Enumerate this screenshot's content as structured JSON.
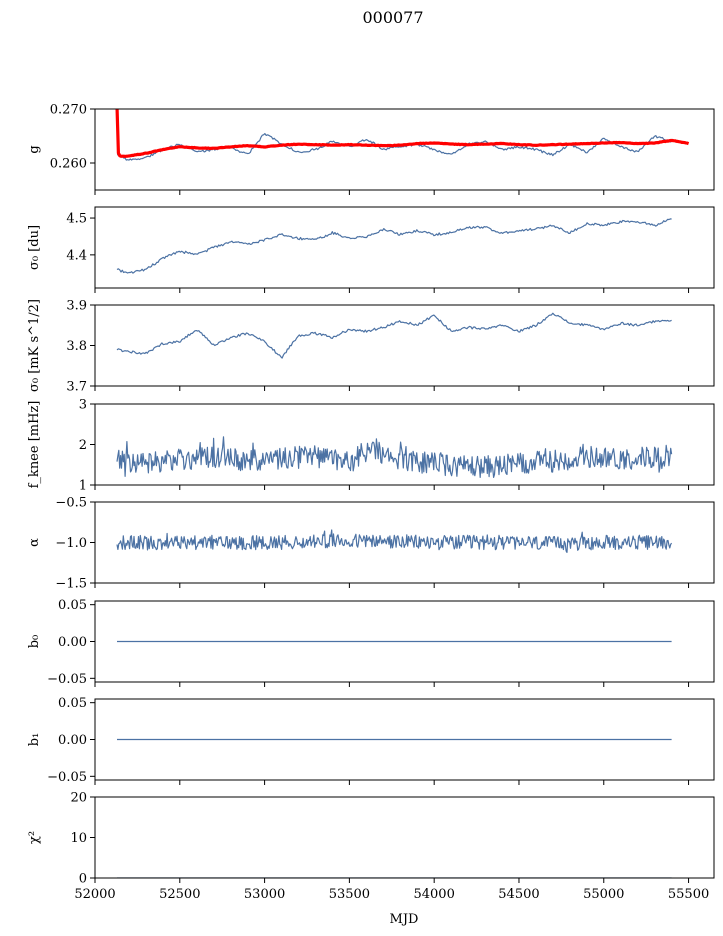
{
  "figure_title": "000077",
  "xlabel": "MJD",
  "xlim": [
    52000,
    55650
  ],
  "xticks": [
    52000,
    52500,
    53000,
    53500,
    54000,
    54500,
    55000,
    55500
  ],
  "colors": {
    "series": "#4c72a4",
    "red": "#ff0000",
    "axis": "#000000"
  },
  "chart_data": [
    {
      "type": "line",
      "ylabel": "g",
      "ylim": [
        0.255,
        0.27
      ],
      "yticks": [
        0.26,
        0.27
      ],
      "ytick_labels": [
        "0.260",
        "0.270"
      ],
      "x_range": [
        52130,
        55400
      ],
      "series": [
        {
          "color": "#4c72a4",
          "x": [
            52130,
            52200,
            52300,
            52400,
            52500,
            52600,
            52700,
            52800,
            52900,
            53000,
            53100,
            53200,
            53300,
            53400,
            53500,
            53600,
            53700,
            53800,
            53900,
            54000,
            54100,
            54200,
            54300,
            54400,
            54500,
            54600,
            54700,
            54800,
            54900,
            55000,
            55100,
            55200,
            55300,
            55400
          ],
          "y": [
            0.2615,
            0.2605,
            0.261,
            0.2625,
            0.2635,
            0.262,
            0.2625,
            0.263,
            0.2615,
            0.2655,
            0.2635,
            0.262,
            0.2625,
            0.264,
            0.263,
            0.2645,
            0.2625,
            0.263,
            0.2635,
            0.2625,
            0.2615,
            0.2635,
            0.264,
            0.2625,
            0.263,
            0.2625,
            0.2615,
            0.2635,
            0.262,
            0.2645,
            0.263,
            0.262,
            0.265,
            0.264
          ]
        },
        {
          "color": "#ff0000",
          "x": [
            52130,
            52135,
            52140,
            52150,
            52200,
            52300,
            52400,
            52500,
            52600,
            52700,
            52800,
            52900,
            53000,
            53100,
            53200,
            53300,
            53400,
            53500,
            53600,
            53700,
            53800,
            53900,
            54000,
            54100,
            54200,
            54300,
            54400,
            54500,
            54600,
            54700,
            54800,
            54900,
            55000,
            55100,
            55200,
            55300,
            55400,
            55500
          ],
          "y": [
            0.2705,
            0.2625,
            0.2615,
            0.2612,
            0.2613,
            0.2618,
            0.2625,
            0.263,
            0.2628,
            0.2627,
            0.263,
            0.2632,
            0.263,
            0.2633,
            0.2635,
            0.2634,
            0.2633,
            0.2634,
            0.2633,
            0.2632,
            0.2633,
            0.2636,
            0.2637,
            0.2635,
            0.2634,
            0.2635,
            0.2636,
            0.2634,
            0.2633,
            0.2634,
            0.2635,
            0.2636,
            0.2637,
            0.2638,
            0.2636,
            0.2637,
            0.2642,
            0.2636
          ]
        }
      ]
    },
    {
      "type": "line",
      "ylabel": "σ₀ [du]",
      "ylim": [
        4.31,
        4.53
      ],
      "yticks": [
        4.4,
        4.5
      ],
      "ytick_labels": [
        "4.4",
        "4.5"
      ],
      "series": [
        {
          "color": "#4c72a4",
          "x": [
            52130,
            52200,
            52300,
            52400,
            52500,
            52600,
            52700,
            52800,
            52900,
            53000,
            53100,
            53200,
            53300,
            53400,
            53500,
            53600,
            53700,
            53800,
            53900,
            54000,
            54100,
            54200,
            54300,
            54400,
            54500,
            54600,
            54700,
            54800,
            54900,
            55000,
            55100,
            55200,
            55300,
            55400
          ],
          "y": [
            4.36,
            4.35,
            4.36,
            4.39,
            4.41,
            4.4,
            4.42,
            4.435,
            4.43,
            4.44,
            4.455,
            4.445,
            4.44,
            4.46,
            4.445,
            4.45,
            4.47,
            4.455,
            4.465,
            4.455,
            4.46,
            4.475,
            4.475,
            4.46,
            4.465,
            4.47,
            4.48,
            4.46,
            4.485,
            4.48,
            4.49,
            4.49,
            4.48,
            4.5
          ]
        }
      ]
    },
    {
      "type": "line",
      "ylabel": "σ₀ [mK s^1/2]",
      "ylim": [
        3.7,
        3.9
      ],
      "yticks": [
        3.7,
        3.8,
        3.9
      ],
      "ytick_labels": [
        "3.7",
        "3.8",
        "3.9"
      ],
      "series": [
        {
          "color": "#4c72a4",
          "x": [
            52130,
            52200,
            52300,
            52400,
            52500,
            52600,
            52700,
            52800,
            52900,
            53000,
            53100,
            53200,
            53300,
            53400,
            53500,
            53600,
            53700,
            53800,
            53900,
            54000,
            54100,
            54200,
            54300,
            54400,
            54500,
            54600,
            54700,
            54800,
            54900,
            55000,
            55100,
            55200,
            55300,
            55400
          ],
          "y": [
            3.79,
            3.785,
            3.78,
            3.805,
            3.81,
            3.84,
            3.8,
            3.82,
            3.83,
            3.81,
            3.77,
            3.825,
            3.83,
            3.82,
            3.84,
            3.835,
            3.845,
            3.86,
            3.85,
            3.875,
            3.835,
            3.845,
            3.84,
            3.85,
            3.835,
            3.85,
            3.88,
            3.855,
            3.85,
            3.84,
            3.855,
            3.85,
            3.86,
            3.86
          ]
        }
      ]
    },
    {
      "type": "line",
      "ylabel": "f_knee [mHz]",
      "ylim": [
        1,
        3
      ],
      "yticks": [
        1,
        2,
        3
      ],
      "ytick_labels": [
        "1",
        "2",
        "3"
      ],
      "series": [
        {
          "color": "#4c72a4",
          "noisy": true,
          "amplitude": 0.28,
          "x": [
            52130,
            52300,
            52500,
            52700,
            52900,
            53100,
            53300,
            53500,
            53600,
            53700,
            53900,
            54100,
            54300,
            54500,
            54700,
            54900,
            55100,
            55300,
            55400
          ],
          "y": [
            1.65,
            1.5,
            1.65,
            1.7,
            1.6,
            1.65,
            1.7,
            1.55,
            1.85,
            1.75,
            1.55,
            1.5,
            1.45,
            1.5,
            1.6,
            1.7,
            1.65,
            1.7,
            1.65
          ]
        }
      ]
    },
    {
      "type": "line",
      "ylabel": "α",
      "ylim": [
        -1.5,
        -0.5
      ],
      "yticks": [
        -1.5,
        -1.0,
        -0.5
      ],
      "ytick_labels": [
        "−1.5",
        "−1.0",
        "−0.5"
      ],
      "series": [
        {
          "color": "#4c72a4",
          "noisy": true,
          "amplitude": 0.09,
          "x": [
            52130,
            52500,
            53000,
            53500,
            54000,
            54500,
            54750,
            55000,
            55400
          ],
          "y": [
            -1.0,
            -1.0,
            -1.0,
            -0.98,
            -1.0,
            -1.0,
            -1.02,
            -1.0,
            -1.0
          ]
        }
      ]
    },
    {
      "type": "line",
      "ylabel": "b₀",
      "ylim": [
        -0.055,
        0.055
      ],
      "yticks": [
        -0.05,
        0.0,
        0.05
      ],
      "ytick_labels": [
        "−0.05",
        "0.00",
        "0.05"
      ],
      "series": [
        {
          "color": "#4c72a4",
          "x": [
            52130,
            55400
          ],
          "y": [
            0.0,
            0.0
          ]
        }
      ]
    },
    {
      "type": "line",
      "ylabel": "b₁",
      "ylim": [
        -0.055,
        0.055
      ],
      "yticks": [
        -0.05,
        0.0,
        0.05
      ],
      "ytick_labels": [
        "−0.05",
        "0.00",
        "0.05"
      ],
      "series": [
        {
          "color": "#4c72a4",
          "x": [
            52130,
            55400
          ],
          "y": [
            0.0,
            0.0
          ]
        }
      ]
    },
    {
      "type": "line",
      "ylabel": "χ²",
      "ylim": [
        0,
        20
      ],
      "yticks": [
        0,
        10,
        20
      ],
      "ytick_labels": [
        "0",
        "10",
        "20"
      ],
      "series": [
        {
          "color": "#4c72a4",
          "x": [
            52130,
            55400
          ],
          "y": [
            0.0,
            0.0
          ]
        }
      ]
    }
  ]
}
